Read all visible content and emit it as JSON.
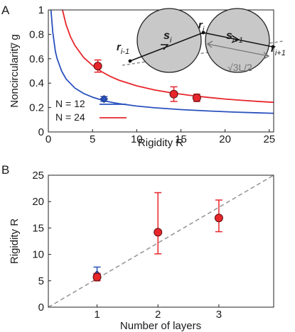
{
  "chart_data": [
    {
      "panel": "A",
      "type": "line",
      "xlabel": "Rigidity R",
      "ylabel": "Noncircularity g",
      "xlim": [
        0,
        25.5
      ],
      "ylim": [
        0,
        1
      ],
      "xticks": [
        0,
        5,
        10,
        15,
        20,
        25
      ],
      "yticks": [
        0,
        0.2,
        0.4,
        0.6,
        0.8,
        1
      ],
      "ytick_labels": [
        "0",
        "0.2",
        "0.4",
        "0.6",
        "0.8",
        "1"
      ],
      "grid": false,
      "legend_position": "bottom-left",
      "series": [
        {
          "name": "N = 12",
          "color": "#2a52be",
          "kind": "curve",
          "x": [
            0.3,
            0.5,
            0.8,
            1,
            1.5,
            2,
            3,
            4,
            5,
            6,
            7,
            8,
            10,
            12,
            15,
            18,
            21,
            24,
            25.5
          ],
          "y": [
            1.0,
            0.82,
            0.66,
            0.6,
            0.5,
            0.435,
            0.36,
            0.315,
            0.285,
            0.262,
            0.245,
            0.232,
            0.212,
            0.198,
            0.183,
            0.172,
            0.163,
            0.156,
            0.153
          ]
        },
        {
          "name": "N = 24",
          "color": "#e8262c",
          "kind": "curve",
          "x": [
            1.6,
            2,
            2.5,
            3,
            4,
            5,
            6,
            7,
            8,
            10,
            12,
            14,
            16,
            18,
            20,
            22,
            24,
            25.5
          ],
          "y": [
            1.0,
            0.88,
            0.78,
            0.71,
            0.61,
            0.545,
            0.495,
            0.455,
            0.424,
            0.378,
            0.345,
            0.32,
            0.3,
            0.284,
            0.27,
            0.259,
            0.249,
            0.243
          ]
        },
        {
          "name": "N = 12",
          "color": "#2a52be",
          "kind": "points",
          "x": [
            6.3
          ],
          "y": [
            0.27
          ],
          "err": [
            0.02
          ]
        },
        {
          "name": "N = 24",
          "color": "#e8262c",
          "kind": "points",
          "x": [
            5.6,
            14.2,
            16.8
          ],
          "y": [
            0.54,
            0.31,
            0.28
          ],
          "err": [
            0.05,
            0.06,
            0.03
          ]
        }
      ],
      "inset": {
        "labels": {
          "r_prev": "r",
          "r_prev_sub": "i-1",
          "s_i": "s",
          "s_i_sub": "i",
          "r_i": "r",
          "r_i_sub": "i",
          "s_next": "s",
          "s_next_sub": "i+1",
          "r_next": "r",
          "r_next_sub": "i+1",
          "dim": "√3L/2"
        }
      }
    },
    {
      "panel": "B",
      "type": "scatter",
      "xlabel": "Number of layers",
      "ylabel": "Rigidity R",
      "xlim": [
        0.2,
        3.9
      ],
      "ylim": [
        0,
        25
      ],
      "xticks": [
        1,
        2,
        3
      ],
      "yticks": [
        0,
        5,
        10,
        15,
        20,
        25
      ],
      "grid": false,
      "reference_line": {
        "style": "dashed",
        "x": [
          0.2,
          3.9
        ],
        "y": [
          0,
          25
        ]
      },
      "series": [
        {
          "name": "N = 12",
          "color": "#2a52be",
          "x": [
            1
          ],
          "y": [
            6.2
          ],
          "err_low": [
            1.2
          ],
          "err_high": [
            1.4
          ]
        },
        {
          "name": "N = 24",
          "color": "#e8262c",
          "x": [
            1,
            2,
            3
          ],
          "y": [
            5.7,
            14.2,
            16.9
          ],
          "err_low": [
            0.7,
            4.1,
            2.6
          ],
          "err_high": [
            0.7,
            7.5,
            3.4
          ]
        }
      ]
    }
  ]
}
